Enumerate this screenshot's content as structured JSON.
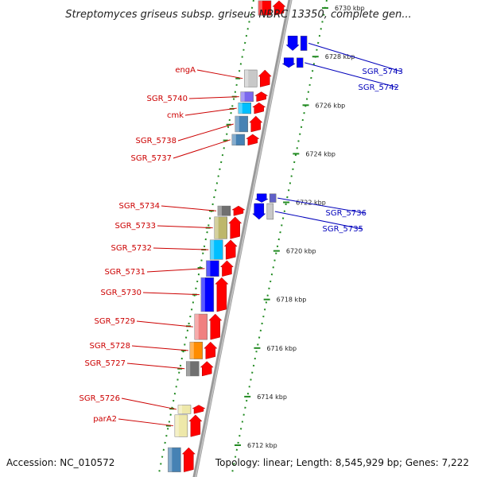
{
  "title": "Streptomyces griseus subsp. griseus NBRC 13350, complete gen...",
  "footer": {
    "accession": "Accession: NC_010572",
    "summary": "Topology: linear; Length: 8,545,929 bp; Genes: 7,222"
  },
  "colors": {
    "forward_label": "#cc0000",
    "reverse_label": "#0000bb",
    "forward_arrow": "#ff0000",
    "reverse_arrow": "#0000ff",
    "tick_mark": "#228b22",
    "axis_line": "#888888"
  },
  "scale": {
    "unit": "kbp",
    "ticks": [
      {
        "kbp": 6730,
        "label": "6730 kbp"
      },
      {
        "kbp": 6728,
        "label": "6728 kbp"
      },
      {
        "kbp": 6726,
        "label": "6726 kbp"
      },
      {
        "kbp": 6724,
        "label": "6724 kbp"
      },
      {
        "kbp": 6722,
        "label": "6722 kbp"
      },
      {
        "kbp": 6720,
        "label": "6720 kbp"
      },
      {
        "kbp": 6718,
        "label": "6718 kbp"
      },
      {
        "kbp": 6716,
        "label": "6716 kbp"
      },
      {
        "kbp": 6714,
        "label": "6714 kbp"
      },
      {
        "kbp": 6712,
        "label": "6712 kbp"
      }
    ]
  },
  "genes": [
    {
      "name": "engA",
      "strand": "forward",
      "start_kbp": 6726.75,
      "end_kbp": 6727.45,
      "cog_color": "#c8c8c8"
    },
    {
      "name": "SGR_5740",
      "strand": "forward",
      "start_kbp": 6726.15,
      "end_kbp": 6726.55,
      "cog_color": "#7b68ee"
    },
    {
      "name": "cmk",
      "strand": "forward",
      "start_kbp": 6725.65,
      "end_kbp": 6726.1,
      "cog_color": "#00bfff"
    },
    {
      "name": "SGR_5738",
      "strand": "forward",
      "start_kbp": 6724.9,
      "end_kbp": 6725.55,
      "cog_color": "#4682b4"
    },
    {
      "name": "SGR_5737",
      "strand": "forward",
      "start_kbp": 6724.35,
      "end_kbp": 6724.8,
      "cog_color": "#4682b4"
    },
    {
      "name": "SGR_5734",
      "strand": "forward",
      "start_kbp": 6721.45,
      "end_kbp": 6721.85,
      "cog_color": "#707070"
    },
    {
      "name": "SGR_5733",
      "strand": "forward",
      "start_kbp": 6720.5,
      "end_kbp": 6721.4,
      "cog_color": "#bdb76b"
    },
    {
      "name": "SGR_5732",
      "strand": "forward",
      "start_kbp": 6719.65,
      "end_kbp": 6720.45,
      "cog_color": "#00bfff"
    },
    {
      "name": "SGR_5731",
      "strand": "forward",
      "start_kbp": 6718.95,
      "end_kbp": 6719.6,
      "cog_color": "#0000ff"
    },
    {
      "name": "SGR_5730",
      "strand": "forward",
      "start_kbp": 6717.5,
      "end_kbp": 6718.9,
      "cog_color": "#0000ff"
    },
    {
      "name": "SGR_5729",
      "strand": "forward",
      "start_kbp": 6716.35,
      "end_kbp": 6717.4,
      "cog_color": "#f08080"
    },
    {
      "name": "SGR_5728",
      "strand": "forward",
      "start_kbp": 6715.55,
      "end_kbp": 6716.25,
      "cog_color": "#ff8c00"
    },
    {
      "name": "SGR_5727",
      "strand": "forward",
      "start_kbp": 6714.85,
      "end_kbp": 6715.45,
      "cog_color": "#707070"
    },
    {
      "name": "SGR_5726",
      "strand": "forward",
      "start_kbp": 6713.3,
      "end_kbp": 6713.65,
      "cog_color": "#eee8aa"
    },
    {
      "name": "parA2",
      "strand": "forward",
      "start_kbp": 6712.35,
      "end_kbp": 6713.25,
      "cog_color": "#eee8aa"
    },
    {
      "name": "SGR_5743",
      "strand": "reverse",
      "start_kbp": 6728.25,
      "end_kbp": 6728.85,
      "cog_color": "#0000ff"
    },
    {
      "name": "SGR_5742",
      "strand": "reverse",
      "start_kbp": 6727.55,
      "end_kbp": 6727.95,
      "cog_color": "#0000ff"
    },
    {
      "name": "SGR_5736",
      "strand": "reverse",
      "start_kbp": 6722.0,
      "end_kbp": 6722.35,
      "cog_color": "#6060c8"
    },
    {
      "name": "SGR_5735",
      "strand": "reverse",
      "start_kbp": 6721.3,
      "end_kbp": 6721.95,
      "cog_color": "#c8c8c8"
    }
  ],
  "unlabeled_genes": [
    {
      "strand": "forward",
      "start_kbp": 6729.7,
      "end_kbp": 6730.3,
      "cog_color": "#ff0000"
    },
    {
      "strand": "forward",
      "start_kbp": 6710.9,
      "end_kbp": 6711.9,
      "cog_color": "#4682b4"
    }
  ]
}
